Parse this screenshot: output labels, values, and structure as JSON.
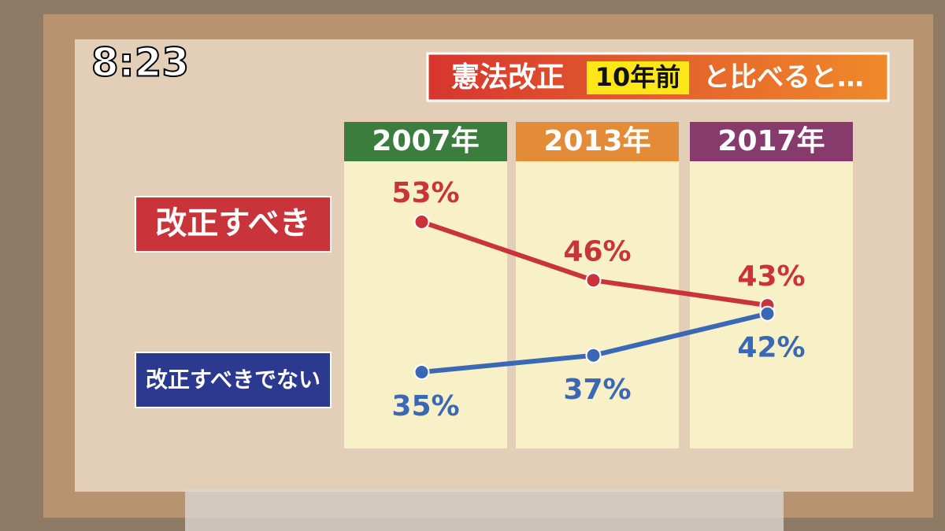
{
  "clock": "8:23",
  "chart_data": {
    "type": "line",
    "title": {
      "part1": "憲法改正",
      "highlight": "10年前",
      "part2": "と比べると…"
    },
    "categories": [
      "2007年",
      "2013年",
      "2017年"
    ],
    "category_colors": [
      "#3b7d3c",
      "#e38b36",
      "#873a6c"
    ],
    "series": [
      {
        "name": "改正すべき",
        "color": "#c8343a",
        "values": [
          53,
          46,
          43
        ],
        "value_labels": [
          "53%",
          "46%",
          "43%"
        ]
      },
      {
        "name": "改正すべきでない",
        "color": "#3a68b4",
        "values": [
          35,
          37,
          42
        ],
        "value_labels": [
          "35%",
          "37%",
          "42%"
        ]
      }
    ]
  }
}
